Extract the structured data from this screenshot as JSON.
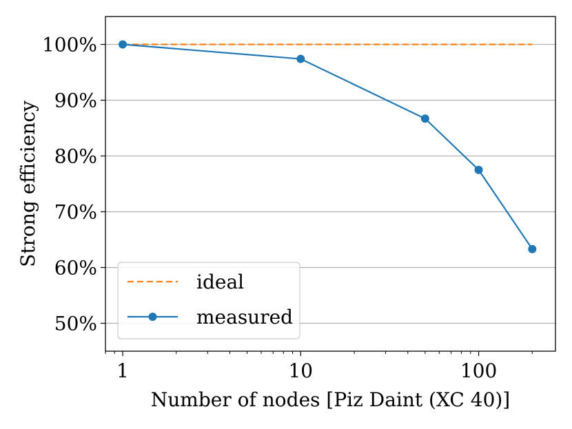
{
  "chart_data": {
    "type": "line",
    "title": "",
    "xlabel": "Number of nodes [Piz Daint (XC 40)]",
    "ylabel": "Strong efficiency",
    "xscale": "log",
    "xlim": [
      0.8,
      270
    ],
    "ylim": [
      45,
      105
    ],
    "xticks": [
      {
        "value": 1,
        "label": "1"
      },
      {
        "value": 10,
        "label": "10"
      },
      {
        "value": 100,
        "label": "100"
      }
    ],
    "yticks": [
      {
        "value": 50,
        "label": "50%"
      },
      {
        "value": 60,
        "label": "60%"
      },
      {
        "value": 70,
        "label": "70%"
      },
      {
        "value": 80,
        "label": "80%"
      },
      {
        "value": 90,
        "label": "90%"
      },
      {
        "value": 100,
        "label": "100%"
      }
    ],
    "grid": "y",
    "legend_position": "lower-left",
    "series": [
      {
        "name": "ideal",
        "color": "#ff7f0e",
        "style": "dashed",
        "markers": false,
        "x": [
          1,
          200
        ],
        "y": [
          100,
          100
        ]
      },
      {
        "name": "measured",
        "color": "#1f77b4",
        "style": "solid",
        "markers": true,
        "x": [
          1,
          10,
          50,
          100,
          200
        ],
        "y": [
          100,
          97.4,
          86.7,
          77.5,
          63.3
        ]
      }
    ]
  }
}
